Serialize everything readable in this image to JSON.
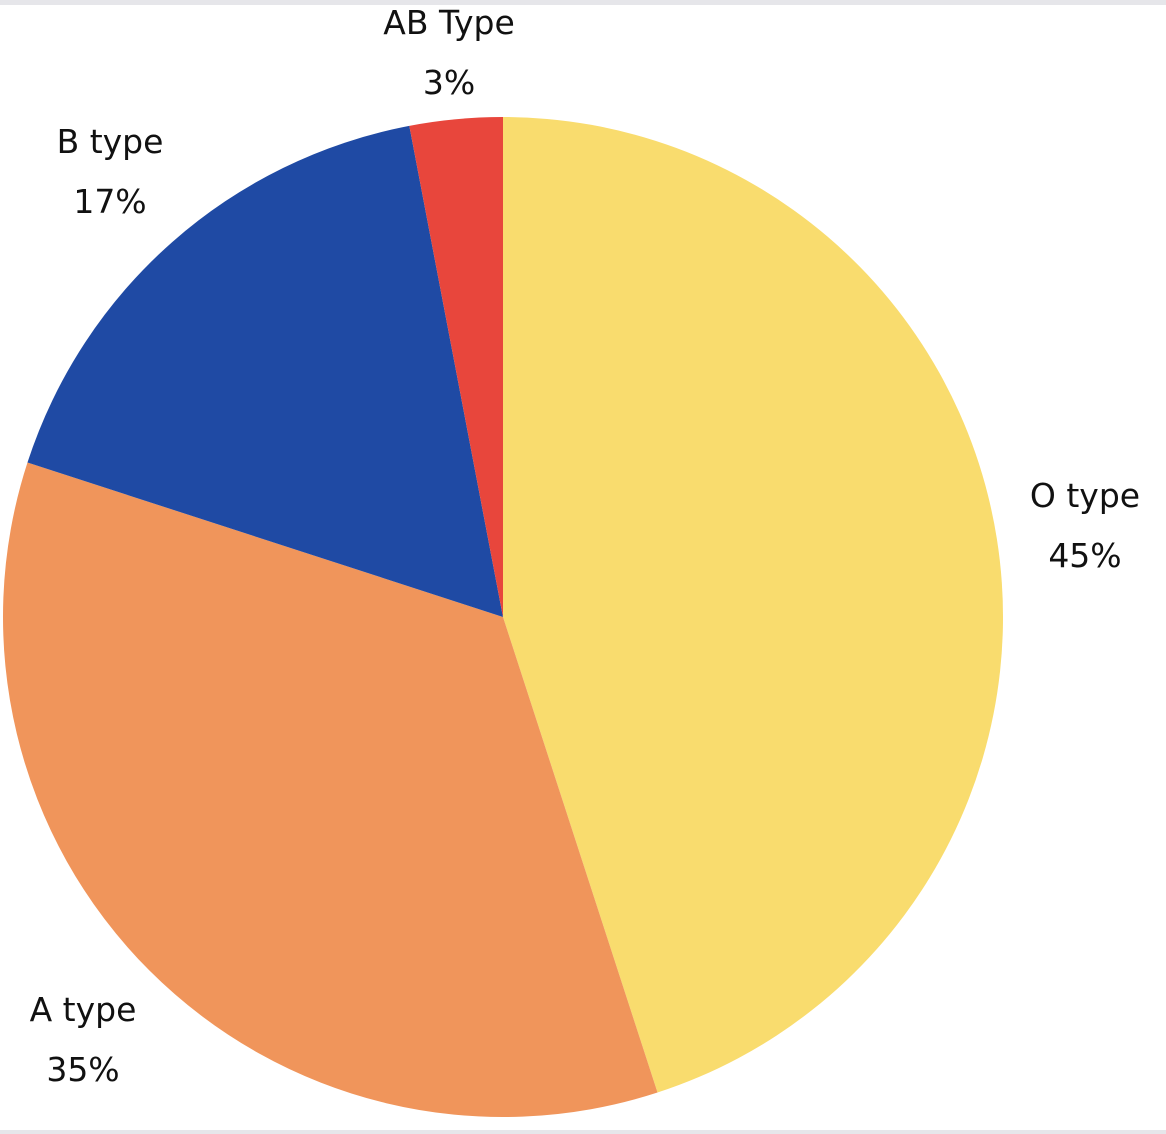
{
  "chart_data": {
    "type": "pie",
    "start_angle_deg": 0,
    "direction": "clockwise",
    "slices": [
      {
        "label": "O type",
        "value": 45,
        "display": "45%",
        "color": "#F9DC6E"
      },
      {
        "label": "A type",
        "value": 35,
        "display": "35%",
        "color": "#F0955B"
      },
      {
        "label": "B type",
        "value": 17,
        "display": "17%",
        "color": "#1F4AA4"
      },
      {
        "label": "AB Type",
        "value": 3,
        "display": "3%",
        "color": "#E8463C"
      }
    ],
    "legend": "none",
    "labels_outside": true
  }
}
